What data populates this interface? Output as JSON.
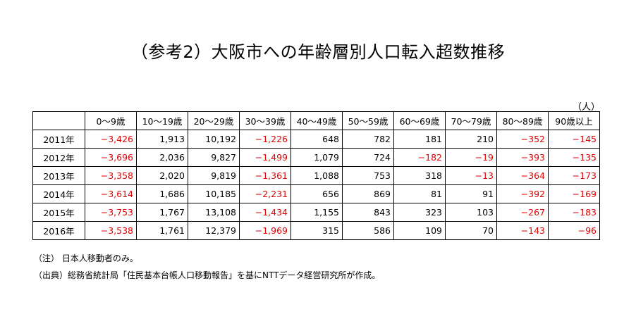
{
  "title": "（参考2）大阪市への年齢層別人口転入超数推移",
  "unit": "（人）",
  "table": {
    "columns": [
      "0～9歳",
      "10～19歳",
      "20～29歳",
      "30～39歳",
      "40～49歳",
      "50～59歳",
      "60～69歳",
      "70～79歳",
      "80～89歳",
      "90歳以上"
    ],
    "rows": [
      {
        "year": "2011年",
        "values": [
          "−3,426",
          "1,913",
          "10,192",
          "−1,226",
          "648",
          "782",
          "181",
          "210",
          "−352",
          "−145"
        ]
      },
      {
        "year": "2012年",
        "values": [
          "−3,696",
          "2,036",
          "9,827",
          "−1,499",
          "1,079",
          "724",
          "−182",
          "−19",
          "−393",
          "−135"
        ]
      },
      {
        "year": "2013年",
        "values": [
          "−3,358",
          "2,020",
          "9,819",
          "−1,361",
          "1,088",
          "753",
          "318",
          "−13",
          "−364",
          "−173"
        ]
      },
      {
        "year": "2014年",
        "values": [
          "−3,614",
          "1,686",
          "10,185",
          "−2,231",
          "656",
          "869",
          "81",
          "91",
          "−392",
          "−169"
        ]
      },
      {
        "year": "2015年",
        "values": [
          "−3,753",
          "1,767",
          "13,108",
          "−1,434",
          "1,155",
          "843",
          "323",
          "103",
          "−267",
          "−183"
        ]
      },
      {
        "year": "2016年",
        "values": [
          "−3,538",
          "1,761",
          "12,379",
          "−1,969",
          "315",
          "586",
          "109",
          "70",
          "−143",
          "−96"
        ]
      }
    ]
  },
  "notes": [
    "（注） 日本人移動者のみ。",
    "（出典）総務省統計局「住民基本台帳人口移動報告」を基にNTTデータ経営研究所が作成。"
  ],
  "colors": {
    "negative": "#e00000",
    "text": "#000000",
    "border": "#000000"
  }
}
